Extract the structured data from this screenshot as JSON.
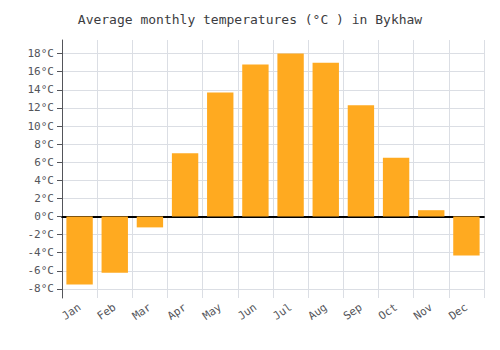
{
  "chart_data": {
    "type": "bar",
    "title": "Average monthly temperatures (°C ) in Bykhaw",
    "categories": [
      "Jan",
      "Feb",
      "Mar",
      "Apr",
      "May",
      "Jun",
      "Jul",
      "Aug",
      "Sep",
      "Oct",
      "Nov",
      "Dec"
    ],
    "values": [
      -7.5,
      -6.2,
      -1.2,
      7.0,
      13.7,
      16.8,
      18.0,
      17.0,
      12.3,
      6.5,
      0.7,
      -4.3
    ],
    "color": "#FFAA20",
    "ylim": [
      -9,
      19.5
    ],
    "yticks": [
      {
        "value": -8,
        "label": "-8°C"
      },
      {
        "value": -6,
        "label": "-6°C"
      },
      {
        "value": -4,
        "label": "-4°C"
      },
      {
        "value": -2,
        "label": "-2°C"
      },
      {
        "value": 0,
        "label": "0°C"
      },
      {
        "value": 2,
        "label": "2°C"
      },
      {
        "value": 4,
        "label": "4°C"
      },
      {
        "value": 6,
        "label": "6°C"
      },
      {
        "value": 8,
        "label": "8°C"
      },
      {
        "value": 10,
        "label": "10°C"
      },
      {
        "value": 12,
        "label": "12°C"
      },
      {
        "value": 14,
        "label": "14°C"
      },
      {
        "value": 16,
        "label": "16°C"
      },
      {
        "value": 18,
        "label": "18°C"
      }
    ],
    "grid": true
  }
}
